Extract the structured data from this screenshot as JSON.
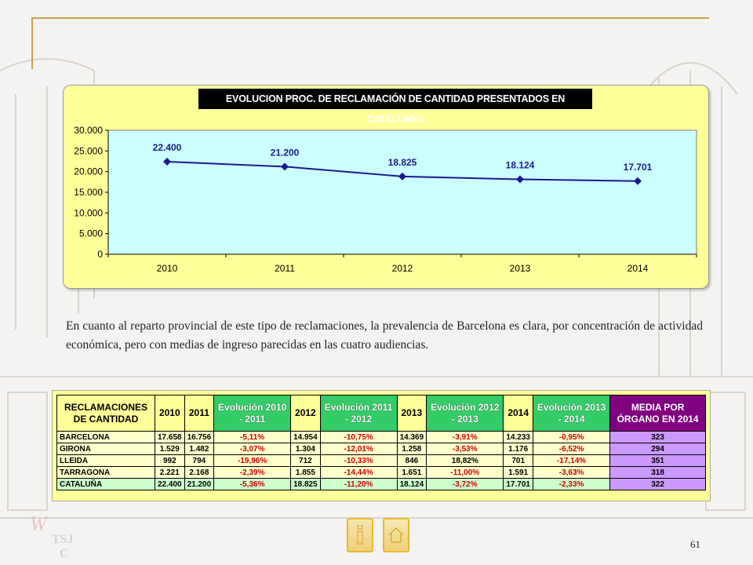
{
  "chart_data": {
    "type": "line",
    "title": "EVOLUCION PROC. DE RECLAMACIÓN DE CANTIDAD  PRESENTADOS EN CATALUNYA",
    "categories": [
      "2010",
      "2011",
      "2012",
      "2013",
      "2014"
    ],
    "series": [
      {
        "values": [
          22400,
          21200,
          18825,
          18124,
          17701
        ],
        "labels": [
          "22.400",
          "21.200",
          "18.825",
          "18.124",
          "17.701"
        ]
      }
    ],
    "ylim": [
      0,
      30000
    ],
    "yticks": [
      0,
      5000,
      10000,
      15000,
      20000,
      25000,
      30000
    ],
    "ytick_labels": [
      "0",
      "5.000",
      "10.000",
      "15.000",
      "20.000",
      "25.000",
      "30.000"
    ],
    "xlabel": "",
    "ylabel": "",
    "grid": false,
    "legend": "none",
    "colors": {
      "line": "#1a1a8c",
      "marker": "#1a1a8c",
      "plot_bg": "#ccffff",
      "box_bg": "#ffff99"
    }
  },
  "paragraph": "En cuanto al reparto provincial de este tipo de reclamaciones, la prevalencia de Barcelona es clara, por concentración de actividad económica, pero con medias de ingreso parecidas en las cuatro audiencias.",
  "table": {
    "headers": [
      "RECLAMACIONES DE CANTIDAD",
      "2010",
      "2011",
      "Evolución 2010 - 2011",
      "2012",
      "Evolución 2011 - 2012",
      "2013",
      "Evolución 2012 - 2013",
      "2014",
      "Evolución 2013 - 2014",
      "MEDIA POR ÓRGANO EN 2014"
    ],
    "rows": [
      [
        "BARCELONA",
        "17.658",
        "16.756",
        "-5,11%",
        "14.954",
        "-10,75%",
        "14.369",
        "-3,91%",
        "14.233",
        "-0,95%",
        "323"
      ],
      [
        "GIRONA",
        "1.529",
        "1.482",
        "-3,07%",
        "1.304",
        "-12,01%",
        "1.258",
        "-3,53%",
        "1.176",
        "-6,52%",
        "294"
      ],
      [
        "LLEIDA",
        "992",
        "794",
        "-19,96%",
        "712",
        "-10,33%",
        "846",
        "18,82%",
        "701",
        "-17,14%",
        "351"
      ],
      [
        "TARRAGONA",
        "2.221",
        "2.168",
        "-2,39%",
        "1.855",
        "-14,44%",
        "1.651",
        "-11,00%",
        "1.591",
        "-3,63%",
        "318"
      ],
      [
        "CATALUÑA",
        "22.400",
        "21.200",
        "-5,36%",
        "18.825",
        "-11,20%",
        "18.124",
        "-3,72%",
        "17.701",
        "-2,33%",
        "322"
      ]
    ]
  },
  "footer": {
    "page_number": "61",
    "logo_text": "TSJ C",
    "nav_icons": [
      "info-icon",
      "home-icon"
    ]
  }
}
